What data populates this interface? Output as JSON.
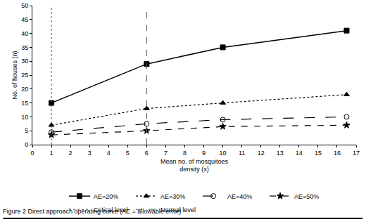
{
  "chart_data": {
    "type": "line",
    "title": "Figure 2 Direct approach operating curve (AE = allowable error)",
    "x_label": "Mean no. of mosquitoes\ndensity (x)",
    "y_label": "No. of houses (n)",
    "x": [
      1,
      6,
      10,
      16.5
    ],
    "series": [
      {
        "name": "AE=20%",
        "color": "#000000",
        "marker": "square",
        "line_style": "solid",
        "values": [
          15,
          29,
          35,
          41
        ]
      },
      {
        "name": "AE=30%",
        "color": "#000000",
        "marker": "triangle",
        "line_style": "dotted",
        "values": [
          7,
          13,
          15,
          18
        ]
      },
      {
        "name": "AE=40%",
        "color": "#000000",
        "marker": "open_circle",
        "line_style": "longdash",
        "values": [
          4.5,
          7.5,
          9,
          10
        ]
      },
      {
        "name": "AE=50%",
        "color": "#000000",
        "marker": "star",
        "line_style": "dash",
        "values": [
          3.5,
          5,
          6.5,
          7
        ]
      }
    ],
    "reference_lines": [
      {
        "name": "Critical level",
        "x": 1,
        "color": "#555555",
        "line_style": "dotted"
      },
      {
        "name": "Normal level",
        "x": 6,
        "color": "#555555",
        "line_style": "dash"
      }
    ],
    "xlim": [
      0,
      17
    ],
    "xticks": [
      0,
      1,
      2,
      3,
      4,
      5,
      6,
      7,
      8,
      9,
      10,
      11,
      12,
      13,
      14,
      15,
      16,
      17
    ],
    "ylim": [
      0,
      50
    ],
    "yticks": [
      0,
      5,
      10,
      15,
      20,
      25,
      30,
      35,
      40,
      45,
      50
    ],
    "grid": false,
    "legend": "bottom"
  }
}
